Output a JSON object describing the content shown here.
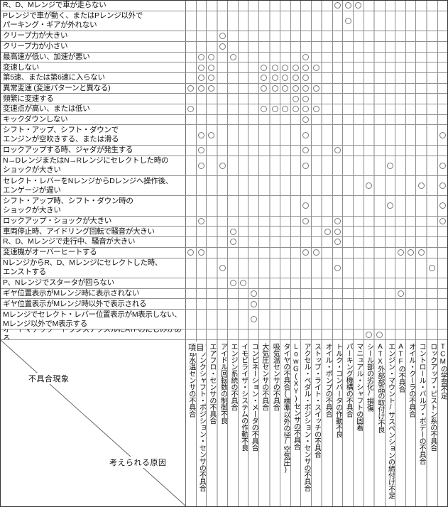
{
  "corner": {
    "item_label": "項目",
    "rows_label": "不具合現象",
    "cols_label": "考えられる原因"
  },
  "mark_symbol": "circle",
  "colors": {
    "background": "#ffffff",
    "border": "#333333",
    "grid_line": "#8f8f8f",
    "group_line": "#c2c2c2",
    "circle": "#787878",
    "text": "#111111"
  },
  "columns": [
    "冷却水温センサの不具合",
    "クランクシャフト・ポジション・センサの不具合",
    "エアフロ・センサの不具合",
    "アイドル回転数の制御不良",
    "エンジン系統の不具合",
    "イモビライザ・システムの作動不良",
    "コンビネーション・メータの不具合",
    "大気圧センサの不具合",
    "吸気温センサの不具合",
    "タイヤの不具合(標準以外の径/空気圧)",
    "LowG(XY)センサの不具合",
    "アクセル・ペダル・ポジション・センサの不具合",
    "ストップ・ライト・スイッチの不具合",
    "オイル・ポンプの不具合",
    "トルク・コンバータの作動不良",
    "パーキング機構の不具合",
    "マニュアル・シャフトの固着",
    "シール部の劣化/損傷",
    "ATX外部部品の取付け不良",
    "エンジン・マウント/サスペンションの締付け不足",
    "ATFの不具合",
    "オイル・クーラの不具合",
    "コントロール・バルブ・ボデーの不具合",
    "ロックアップ・ピストン系の不具合",
    "TCMの学習不足"
  ],
  "group_separator_after_columns": [
    3,
    8,
    13,
    18,
    23
  ],
  "rows": [
    {
      "label": "R、D、Mレンジで車が走らない",
      "tall": false,
      "marks": [
        15,
        16,
        17
      ]
    },
    {
      "label": "Pレンジで車が動く、またはPレンジ以外で\nパーキング・ギアが外れない",
      "tall": true,
      "marks": [
        16
      ]
    },
    {
      "label": "クリープ力が大きい",
      "tall": false,
      "marks": [
        4
      ]
    },
    {
      "label": "クリープ力が小さい",
      "tall": false,
      "marks": [
        4
      ]
    },
    {
      "label": "最高速が低い、加速が悪い",
      "tall": false,
      "marks": [
        2,
        3,
        5,
        12
      ]
    },
    {
      "label": "変速しない",
      "tall": false,
      "marks": [
        2,
        3,
        8,
        9,
        10,
        11,
        12,
        13
      ]
    },
    {
      "label": "第5速、または第6速に入らない",
      "tall": false,
      "marks": [
        2,
        3,
        8,
        9,
        10,
        11,
        12
      ]
    },
    {
      "label": "異常変速 (変速パターンと異なる)",
      "tall": false,
      "marks": [
        1,
        2,
        3,
        8,
        9,
        10,
        11,
        12,
        13
      ]
    },
    {
      "label": "頻繁に変速する",
      "tall": false,
      "marks": [
        11,
        12
      ]
    },
    {
      "label": "変速点が高い、または低い",
      "tall": false,
      "marks": [
        1,
        8,
        9,
        10,
        11,
        12,
        13
      ]
    },
    {
      "label": "キックダウンしない",
      "tall": false,
      "marks": [
        12
      ]
    },
    {
      "label": "シフト・アップ、シフト・ダウンで\nエンジンが空吹きする、または滑る",
      "tall": true,
      "marks": [
        2,
        3,
        12,
        25
      ]
    },
    {
      "label": "ロックアップする時、ジャダが発生する",
      "tall": false,
      "marks": [
        2,
        12,
        15
      ]
    },
    {
      "label": "N→DレンジまたはN→Rレンジにセレクトした時の\nショックが大きい",
      "tall": true,
      "marks": [
        2,
        4,
        12,
        20,
        25
      ]
    },
    {
      "label": "セレクト・レバーをNレンジからDレンジへ操作後、\nエンゲージが遅い",
      "tall": true,
      "marks": [
        18,
        23,
        25
      ]
    },
    {
      "label": "シフト・アップ時、シフト・ダウン時の\nショックが大きい",
      "tall": true,
      "marks": [
        12,
        20,
        25
      ]
    },
    {
      "label": "ロックアップ・ショックが大きい",
      "tall": false,
      "marks": [
        2,
        12,
        15,
        25
      ]
    },
    {
      "label": "車両停止時、アイドリング回転で騒音が大きい",
      "tall": false,
      "marks": [
        5,
        14,
        15
      ]
    },
    {
      "label": "R、D、Mレンジで走行中、騒音が大きい",
      "tall": false,
      "marks": [
        5,
        15
      ]
    },
    {
      "label": "変速機がオーバーヒートする",
      "tall": false,
      "marks": [
        1,
        2,
        12,
        13,
        21,
        22,
        23
      ]
    },
    {
      "label": "NレンジからR、D、Mレンジにセレクトした時、\nエンストする",
      "tall": true,
      "marks": [
        4,
        15,
        24
      ]
    },
    {
      "label": "P、Nレンジでスタータが回らない",
      "tall": false,
      "marks": [
        5,
        6
      ]
    },
    {
      "label": "ギヤ位置表示がMレンジ時に表示されない",
      "tall": false,
      "marks": [
        7,
        21
      ]
    },
    {
      "label": "ギヤ位置表示がMレンジ時以外で表示される",
      "tall": false,
      "marks": [
        7
      ]
    },
    {
      "label": "Mレンジでセレクト・レバー位置表示がM表示しない、\nMレンジ以外でM表示する",
      "tall": true,
      "marks": [
        7
      ]
    },
    {
      "label": "オートマチック・トランスアクスルにATFのにじみがある",
      "tall": false,
      "marks": [
        18,
        19
      ]
    }
  ]
}
